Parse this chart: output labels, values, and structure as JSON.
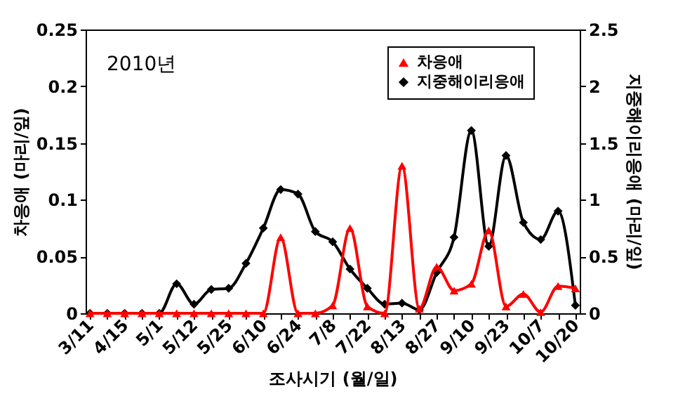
{
  "chart_data": {
    "type": "line",
    "categories": [
      "3/11",
      null,
      "4/15",
      null,
      "5/1",
      null,
      "5/12",
      null,
      "5/25",
      null,
      "6/10",
      null,
      "6/24",
      null,
      "7/8",
      null,
      "7/22",
      null,
      "8/13",
      null,
      "8/27",
      null,
      "9/10",
      null,
      "9/23",
      null,
      "10/7",
      null,
      "10/20"
    ],
    "series": [
      {
        "name": "차응애",
        "color": "#ff0000",
        "marker": "triangle",
        "values": [
          0,
          0,
          0,
          0,
          0,
          0,
          0,
          0,
          0,
          0,
          0,
          0.067,
          0,
          0,
          0.007,
          0.075,
          0.006,
          0,
          0.13,
          0.004,
          0.041,
          0.02,
          0.026,
          0.073,
          0.006,
          0.017,
          0.001,
          0.024,
          0.022
        ]
      },
      {
        "name": "지중해이리응애",
        "color": "#000000",
        "marker": "diamond",
        "axis": "y2",
        "values": [
          0,
          0,
          0,
          0,
          0,
          0.26,
          0.08,
          0.21,
          0.22,
          0.44,
          0.75,
          1.09,
          1.05,
          0.72,
          0.63,
          0.39,
          0.22,
          0.08,
          0.09,
          0.03,
          0.36,
          0.67,
          1.61,
          0.59,
          1.39,
          0.8,
          0.65,
          0.9,
          0.07
        ]
      }
    ],
    "ylim": [
      0,
      0.25
    ],
    "yticks": [
      0,
      0.05,
      0.1,
      0.15,
      0.2,
      0.25
    ],
    "y2lim": [
      0,
      2.5
    ],
    "y2ticks": [
      0,
      0.5,
      1,
      1.5,
      2,
      2.5
    ],
    "xlabel": "조사시기 (월/일)",
    "ylabel": "차응애 (마리/잎)",
    "y2label": "지중해이리응애 (마리/잎)",
    "annotations": [
      "2010년"
    ],
    "legend": "top right",
    "grid": false
  }
}
